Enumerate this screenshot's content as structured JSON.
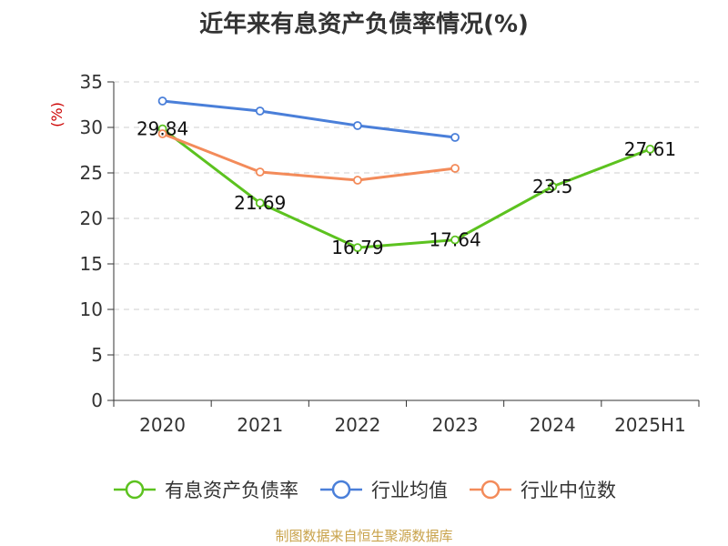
{
  "chart_data": {
    "type": "line",
    "title": "近年来有息资产负债率情况(%)",
    "ylabel": "(%)",
    "xlabel": "",
    "categories": [
      "2020",
      "2021",
      "2022",
      "2023",
      "2024",
      "2025H1"
    ],
    "ylim": [
      0,
      35
    ],
    "yticks": [
      0,
      5,
      10,
      15,
      20,
      25,
      30,
      35
    ],
    "grid": true,
    "legend_position": "bottom",
    "series": [
      {
        "name": "有息资产负债率",
        "color": "#5cc21f",
        "values": [
          29.84,
          21.69,
          16.79,
          17.64,
          23.5,
          27.61
        ],
        "labels": [
          "29.84",
          "21.69",
          "16.79",
          "17.64",
          "23.5",
          "27.61"
        ]
      },
      {
        "name": "行业均值",
        "color": "#4a7fd9",
        "values": [
          32.9,
          31.8,
          30.2,
          28.9,
          null,
          null
        ]
      },
      {
        "name": "行业中位数",
        "color": "#f38b5a",
        "values": [
          29.3,
          25.1,
          24.2,
          25.5,
          null,
          null
        ]
      }
    ]
  },
  "source": "制图数据来自恒生聚源数据库"
}
